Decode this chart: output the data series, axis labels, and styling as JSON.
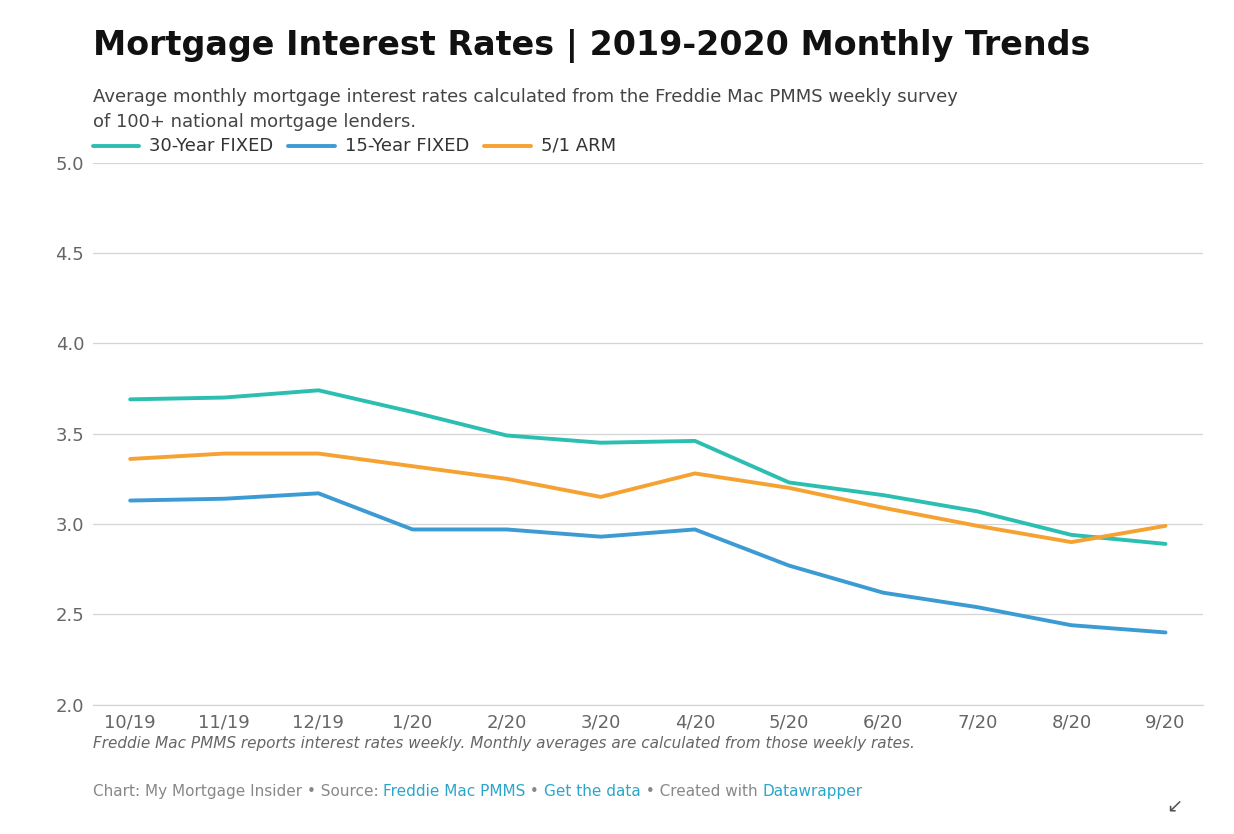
{
  "title": "Mortgage Interest Rates | 2019-2020 Monthly Trends",
  "subtitle": "Average monthly mortgage interest rates calculated from the Freddie Mac PMMS weekly survey\nof 100+ national mortgage lenders.",
  "footnote_italic": "Freddie Mac PMMS reports interest rates weekly. Monthly averages are calculated from those weekly rates.",
  "x_labels": [
    "10/19",
    "11/19",
    "12/19",
    "1/20",
    "2/20",
    "3/20",
    "4/20",
    "5/20",
    "6/20",
    "7/20",
    "8/20",
    "9/20"
  ],
  "series_30yr": [
    3.69,
    3.7,
    3.74,
    3.62,
    3.49,
    3.45,
    3.46,
    3.23,
    3.16,
    3.07,
    2.94,
    2.89
  ],
  "series_15yr": [
    3.13,
    3.14,
    3.17,
    2.97,
    2.97,
    2.93,
    2.97,
    2.77,
    2.62,
    2.54,
    2.44,
    2.4
  ],
  "series_arm": [
    3.36,
    3.39,
    3.39,
    3.32,
    3.25,
    3.15,
    3.28,
    3.2,
    3.09,
    2.99,
    2.9,
    2.99
  ],
  "color_30yr": "#2cbfb1",
  "color_15yr": "#3d9bd4",
  "color_arm": "#f5a233",
  "ylim": [
    2.0,
    5.0
  ],
  "yticks": [
    2.0,
    2.5,
    3.0,
    3.5,
    4.0,
    4.5,
    5.0
  ],
  "line_width": 2.8,
  "background_color": "#ffffff",
  "grid_color": "#d5d5d5",
  "axis_label_color": "#666666",
  "title_fontsize": 24,
  "subtitle_fontsize": 13,
  "legend_fontsize": 13,
  "tick_fontsize": 13,
  "footnote_fontsize": 11,
  "link_color": "#2ba6cb",
  "footnote_gray": "#888888",
  "footnote_darkgray": "#666666"
}
